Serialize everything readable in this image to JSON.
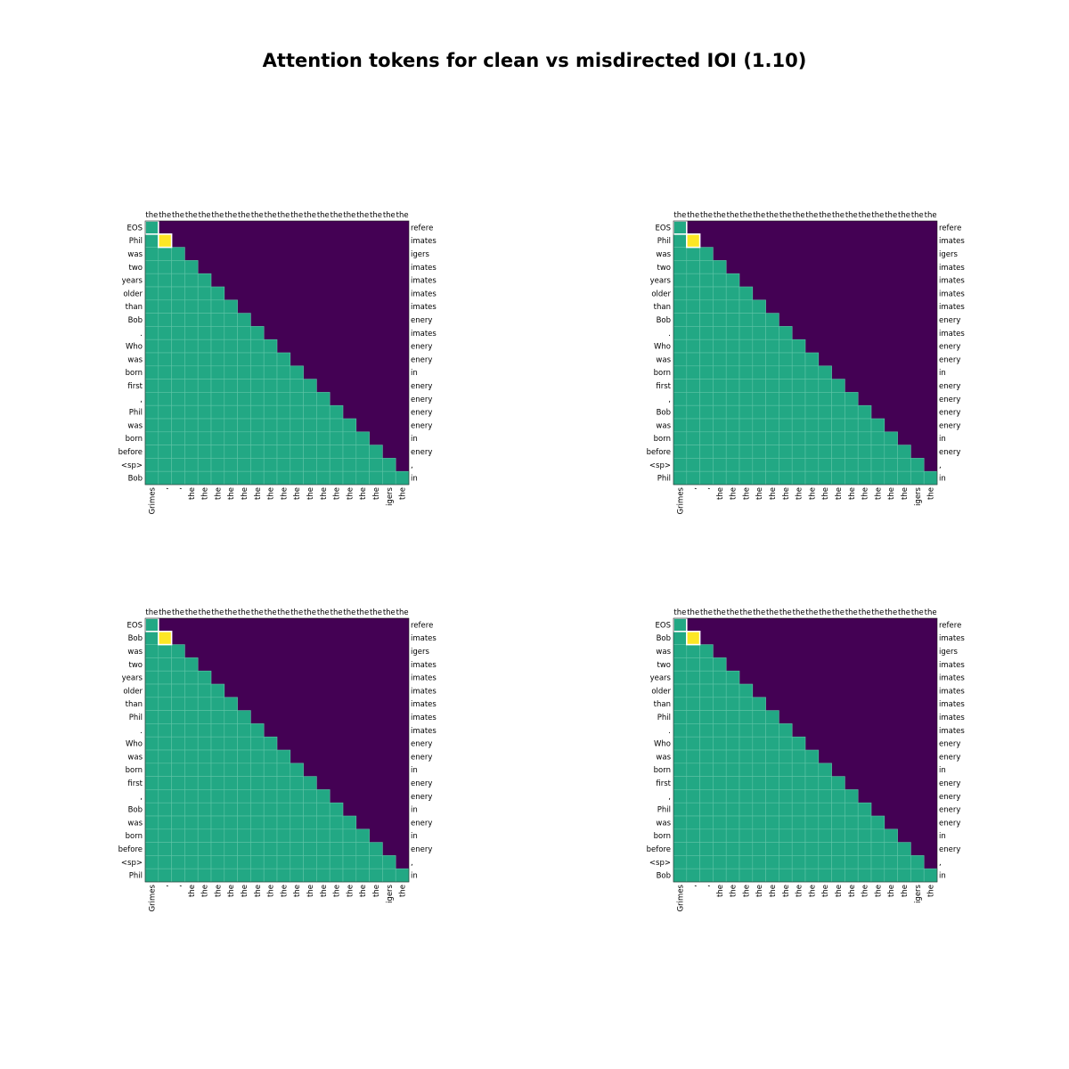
{
  "title": "Attention tokens for clean vs misdirected IOI (1.10)",
  "colors": {
    "upper": "#440154",
    "lower": "#22a884",
    "highlight": "#fde725",
    "grid": "#5ec4a6",
    "outline": "#ffffff"
  },
  "chart_data": [
    {
      "type": "heatmap",
      "top_labels": [
        "the",
        "the",
        "the",
        "the",
        "the",
        "the",
        "the",
        "the",
        "the",
        "the",
        "the",
        "the",
        "the",
        "the",
        "the",
        "the",
        "the",
        "the",
        "the",
        "the"
      ],
      "row_labels": [
        "EOS",
        "Phil",
        "was",
        "two",
        "years",
        "older",
        "than",
        "Bob",
        ".",
        "Who",
        "was",
        "born",
        "first",
        ",",
        "Phil",
        "was",
        "born",
        "before",
        "<sp>",
        "Bob"
      ],
      "right_labels": [
        "refere",
        "imates",
        "igers",
        "imates",
        "imates",
        "imates",
        "imates",
        "enery",
        "imates",
        "enery",
        "enery",
        "in",
        "enery",
        "enery",
        "enery",
        "enery",
        "in",
        "enery",
        ",",
        "in"
      ],
      "bottom_labels": [
        "Grimes",
        ",",
        ",",
        "the",
        "the",
        "the",
        "the",
        "the",
        "the",
        "the",
        "the",
        "the",
        "the",
        "the",
        "the",
        "the",
        "the",
        "the",
        "igers",
        "the"
      ],
      "highlight": [
        1,
        1
      ],
      "outlined_cells": [
        [
          0,
          0
        ],
        [
          1,
          1
        ]
      ]
    },
    {
      "type": "heatmap",
      "top_labels": [
        "the",
        "the",
        "the",
        "the",
        "the",
        "the",
        "the",
        "the",
        "the",
        "the",
        "the",
        "the",
        "the",
        "the",
        "the",
        "the",
        "the",
        "the",
        "the",
        "the"
      ],
      "row_labels": [
        "EOS",
        "Phil",
        "was",
        "two",
        "years",
        "older",
        "than",
        "Bob",
        ".",
        "Who",
        "was",
        "born",
        "first",
        ",",
        "Bob",
        "was",
        "born",
        "before",
        "<sp>",
        "Phil"
      ],
      "right_labels": [
        "refere",
        "imates",
        "igers",
        "imates",
        "imates",
        "imates",
        "imates",
        "enery",
        "imates",
        "enery",
        "enery",
        "in",
        "enery",
        "enery",
        "enery",
        "enery",
        "in",
        "enery",
        ",",
        "in"
      ],
      "bottom_labels": [
        "Grimes",
        ",",
        ",",
        "the",
        "the",
        "the",
        "the",
        "the",
        "the",
        "the",
        "the",
        "the",
        "the",
        "the",
        "the",
        "the",
        "the",
        "the",
        "igers",
        "the"
      ],
      "highlight": [
        1,
        1
      ],
      "outlined_cells": [
        [
          0,
          0
        ],
        [
          1,
          1
        ]
      ]
    },
    {
      "type": "heatmap",
      "top_labels": [
        "the",
        "the",
        "the",
        "the",
        "the",
        "the",
        "the",
        "the",
        "the",
        "the",
        "the",
        "the",
        "the",
        "the",
        "the",
        "the",
        "the",
        "the",
        "the",
        "the"
      ],
      "row_labels": [
        "EOS",
        "Bob",
        "was",
        "two",
        "years",
        "older",
        "than",
        "Phil",
        ".",
        "Who",
        "was",
        "born",
        "first",
        ",",
        "Bob",
        "was",
        "born",
        "before",
        "<sp>",
        "Phil"
      ],
      "right_labels": [
        "refere",
        "imates",
        "igers",
        "imates",
        "imates",
        "imates",
        "imates",
        "imates",
        "imates",
        "enery",
        "enery",
        "in",
        "enery",
        "enery",
        "in",
        "enery",
        "in",
        "enery",
        ",",
        "in"
      ],
      "bottom_labels": [
        "Grimes",
        ",",
        ",",
        "the",
        "the",
        "the",
        "the",
        "the",
        "the",
        "the",
        "the",
        "the",
        "the",
        "the",
        "the",
        "the",
        "the",
        "the",
        "igers",
        "the"
      ],
      "highlight": [
        1,
        1
      ],
      "outlined_cells": [
        [
          0,
          0
        ],
        [
          1,
          1
        ]
      ]
    },
    {
      "type": "heatmap",
      "top_labels": [
        "the",
        "the",
        "the",
        "the",
        "the",
        "the",
        "the",
        "the",
        "the",
        "the",
        "the",
        "the",
        "the",
        "the",
        "the",
        "the",
        "the",
        "the",
        "the",
        "the"
      ],
      "row_labels": [
        "EOS",
        "Bob",
        "was",
        "two",
        "years",
        "older",
        "than",
        "Phil",
        ".",
        "Who",
        "was",
        "born",
        "first",
        ",",
        "Phil",
        "was",
        "born",
        "before",
        "<sp>",
        "Bob"
      ],
      "right_labels": [
        "refere",
        "imates",
        "igers",
        "imates",
        "imates",
        "imates",
        "imates",
        "imates",
        "imates",
        "enery",
        "enery",
        "in",
        "enery",
        "enery",
        "enery",
        "enery",
        "in",
        "enery",
        ",",
        "in"
      ],
      "bottom_labels": [
        "Grimes",
        ",",
        ",",
        "the",
        "the",
        "the",
        "the",
        "the",
        "the",
        "the",
        "the",
        "the",
        "the",
        "the",
        "the",
        "the",
        "the",
        "the",
        "igers",
        "the"
      ],
      "highlight": [
        1,
        1
      ],
      "outlined_cells": [
        [
          0,
          0
        ],
        [
          1,
          1
        ]
      ]
    }
  ]
}
